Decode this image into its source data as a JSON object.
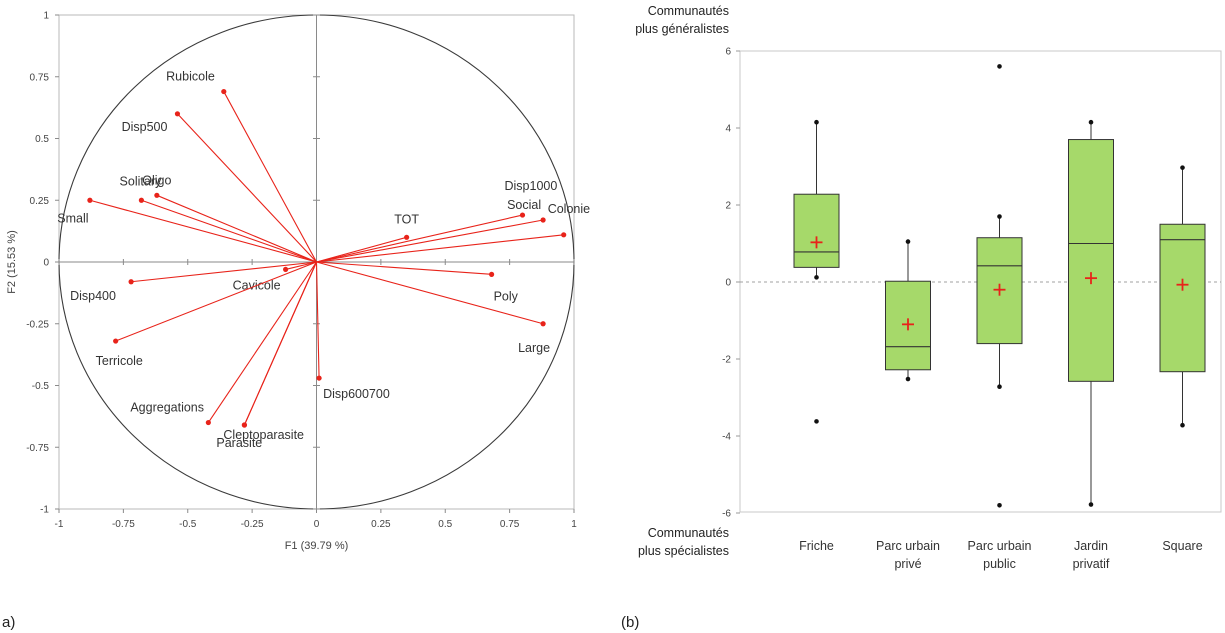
{
  "panels": {
    "a": "a)",
    "b": "(b)"
  },
  "chart_data": [
    {
      "type": "scatter",
      "subtype": "correlation-circle",
      "xlabel": "F1 (39.79 %)",
      "ylabel": "F2 (15.53 %)",
      "xlim": [
        -1,
        1
      ],
      "ylim": [
        -1,
        1
      ],
      "xticks": [
        "-1",
        "-0.75",
        "-0.5",
        "-0.25",
        "0",
        "0.25",
        "0.5",
        "0.75",
        "1"
      ],
      "yticks": [
        "-1",
        "-0.75",
        "-0.5",
        "-0.25",
        "0",
        "0.25",
        "0.5",
        "0.75",
        "1"
      ],
      "color": "#e8231a",
      "points": [
        {
          "label": "Rubicole",
          "x": -0.36,
          "y": 0.69
        },
        {
          "label": "Disp500",
          "x": -0.54,
          "y": 0.6
        },
        {
          "label": "Oligo",
          "x": -0.62,
          "y": 0.27
        },
        {
          "label": "Solitary",
          "x": -0.68,
          "y": 0.25
        },
        {
          "label": "Small",
          "x": -0.88,
          "y": 0.25
        },
        {
          "label": "Disp400",
          "x": -0.72,
          "y": -0.08
        },
        {
          "label": "Cavicole",
          "x": -0.12,
          "y": -0.03
        },
        {
          "label": "Terricole",
          "x": -0.78,
          "y": -0.32
        },
        {
          "label": "Aggregations",
          "x": -0.42,
          "y": -0.65
        },
        {
          "label": "Parasite",
          "x": -0.28,
          "y": -0.66
        },
        {
          "label": "Cleptoparasite",
          "x": -0.28,
          "y": -0.66
        },
        {
          "label": "Disp600700",
          "x": 0.01,
          "y": -0.47
        },
        {
          "label": "TOT",
          "x": 0.35,
          "y": 0.1
        },
        {
          "label": "Disp1000",
          "x": 0.8,
          "y": 0.19
        },
        {
          "label": "Social",
          "x": 0.88,
          "y": 0.17
        },
        {
          "label": "Colonie",
          "x": 0.96,
          "y": 0.11
        },
        {
          "label": "Poly",
          "x": 0.68,
          "y": -0.05
        },
        {
          "label": "Large",
          "x": 0.88,
          "y": -0.25
        }
      ]
    },
    {
      "type": "box",
      "ylim": [
        -6,
        6
      ],
      "yticks": [
        "-6",
        "-4",
        "-2",
        "0",
        "2",
        "4",
        "6"
      ],
      "reference_line": 0,
      "box_color": "#a6d96a",
      "mean_color": "#e8231a",
      "top_note": [
        "Communautés",
        "plus généralistes"
      ],
      "bottom_note": [
        "Communautés",
        "plus spécialistes"
      ],
      "categories": [
        {
          "label": [
            "Friche"
          ],
          "whisker_low": 0.12,
          "q1": 0.38,
          "median": 0.78,
          "q3": 2.28,
          "whisker_high": 4.15,
          "mean": 1.03,
          "outliers": [
            -3.62
          ]
        },
        {
          "label": [
            "Parc urbain",
            "privé"
          ],
          "whisker_low": -2.52,
          "q1": -2.28,
          "median": -1.68,
          "q3": 0.02,
          "whisker_high": 1.05,
          "mean": -1.1,
          "outliers": []
        },
        {
          "label": [
            "Parc urbain",
            "public"
          ],
          "whisker_low": -2.72,
          "q1": -1.6,
          "median": 0.42,
          "q3": 1.15,
          "whisker_high": 1.7,
          "mean": -0.2,
          "outliers": [
            5.6,
            -5.8
          ]
        },
        {
          "label": [
            "Jardin",
            "privatif"
          ],
          "whisker_low": -5.78,
          "q1": -2.58,
          "median": 1.0,
          "q3": 3.7,
          "whisker_high": 4.15,
          "mean": 0.1,
          "outliers": []
        },
        {
          "label": [
            "Square"
          ],
          "whisker_low": -3.72,
          "q1": -2.33,
          "median": 1.1,
          "q3": 1.5,
          "whisker_high": 2.97,
          "mean": -0.07,
          "outliers": []
        }
      ]
    }
  ]
}
